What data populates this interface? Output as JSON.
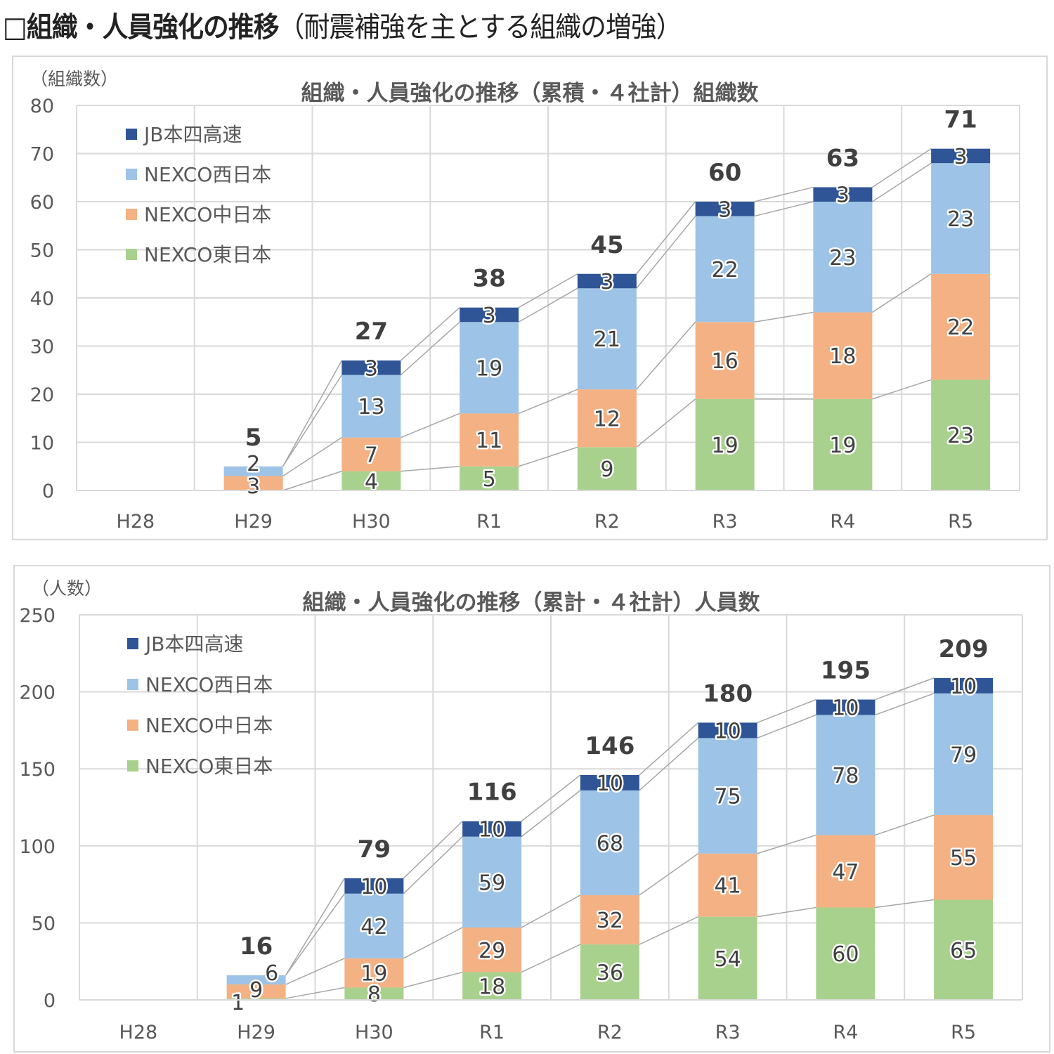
{
  "page": {
    "title_main": "□組織・人員強化の推移",
    "title_sub": "（耐震補強を主とする組織の増強）"
  },
  "chart_data": [
    {
      "type": "bar",
      "stacked": true,
      "title": "組織・人員強化の推移（累積・４社計）組織数",
      "ylabel": "（組織数）",
      "xlabel": "",
      "ylim": [
        0,
        80
      ],
      "yticks": [
        0,
        10,
        20,
        30,
        40,
        50,
        60,
        70,
        80
      ],
      "grid": true,
      "legend_position": "top-left",
      "categories": [
        "H28",
        "H29",
        "H30",
        "R1",
        "R2",
        "R3",
        "R4",
        "R5"
      ],
      "series": [
        {
          "name": "NEXCO東日本",
          "color": "#a9d18e",
          "values": [
            0,
            0,
            4,
            5,
            9,
            19,
            19,
            23
          ]
        },
        {
          "name": "NEXCO中日本",
          "color": "#f4b183",
          "values": [
            0,
            3,
            7,
            11,
            12,
            16,
            18,
            22
          ]
        },
        {
          "name": "NEXCO西日本",
          "color": "#9dc3e6",
          "values": [
            0,
            2,
            13,
            19,
            21,
            22,
            23,
            23
          ]
        },
        {
          "name": "JB本四高速",
          "color": "#2f5597",
          "values": [
            0,
            0,
            3,
            3,
            3,
            3,
            3,
            3
          ]
        }
      ],
      "totals": [
        null,
        5,
        27,
        38,
        45,
        60,
        63,
        71
      ],
      "legend_order": [
        "JB本四高速",
        "NEXCO西日本",
        "NEXCO中日本",
        "NEXCO東日本"
      ]
    },
    {
      "type": "bar",
      "stacked": true,
      "title": "組織・人員強化の推移（累計・４社計）人員数",
      "ylabel": "（人数）",
      "xlabel": "",
      "ylim": [
        0,
        250
      ],
      "yticks": [
        0,
        50,
        100,
        150,
        200,
        250
      ],
      "grid": true,
      "legend_position": "top-left",
      "categories": [
        "H28",
        "H29",
        "H30",
        "R1",
        "R2",
        "R3",
        "R4",
        "R5"
      ],
      "series": [
        {
          "name": "NEXCO東日本",
          "color": "#a9d18e",
          "values": [
            0,
            1,
            8,
            18,
            36,
            54,
            60,
            65
          ]
        },
        {
          "name": "NEXCO中日本",
          "color": "#f4b183",
          "values": [
            0,
            9,
            19,
            29,
            32,
            41,
            47,
            55
          ]
        },
        {
          "name": "NEXCO西日本",
          "color": "#9dc3e6",
          "values": [
            0,
            6,
            42,
            59,
            68,
            75,
            78,
            79
          ]
        },
        {
          "name": "JB本四高速",
          "color": "#2f5597",
          "values": [
            0,
            0,
            10,
            10,
            10,
            10,
            10,
            10
          ]
        }
      ],
      "totals": [
        null,
        16,
        79,
        116,
        146,
        180,
        195,
        209
      ],
      "legend_order": [
        "JB本四高速",
        "NEXCO西日本",
        "NEXCO中日本",
        "NEXCO東日本"
      ]
    }
  ]
}
